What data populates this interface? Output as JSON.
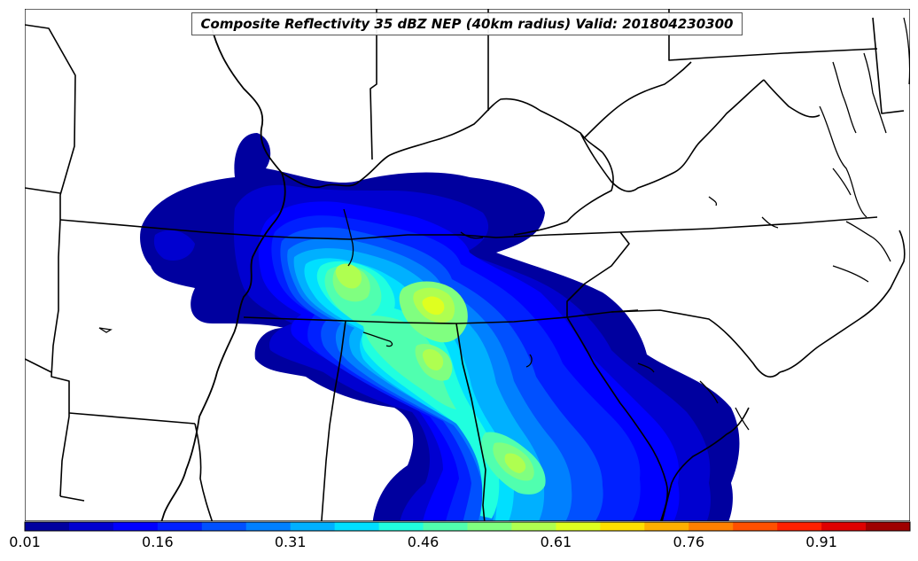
{
  "map": {
    "title": "Composite Reflectivity 35 dBZ NEP (40km radius) Valid: 201804230300",
    "projection_region": "Southeastern United States (Tennessee, Alabama, Georgia, Carolinas)",
    "field_description": "Neighborhood ensemble probability of composite reflectivity >= 35 dBZ"
  },
  "colorbar": {
    "tick_labels": [
      "0.01",
      "0.16",
      "0.31",
      "0.46",
      "0.61",
      "0.76",
      "0.91"
    ],
    "range": [
      0.01,
      1.01
    ],
    "bin_width": 0.05,
    "colors": [
      "#00009f",
      "#0000d0",
      "#0000ff",
      "#0020ff",
      "#0050ff",
      "#0080ff",
      "#00b0ff",
      "#00dfff",
      "#20ffdf",
      "#50ffaf",
      "#80ff80",
      "#afff50",
      "#dfff20",
      "#ffe000",
      "#ffb000",
      "#ff8000",
      "#ff5000",
      "#ff2000",
      "#df0000",
      "#9f0000"
    ]
  }
}
